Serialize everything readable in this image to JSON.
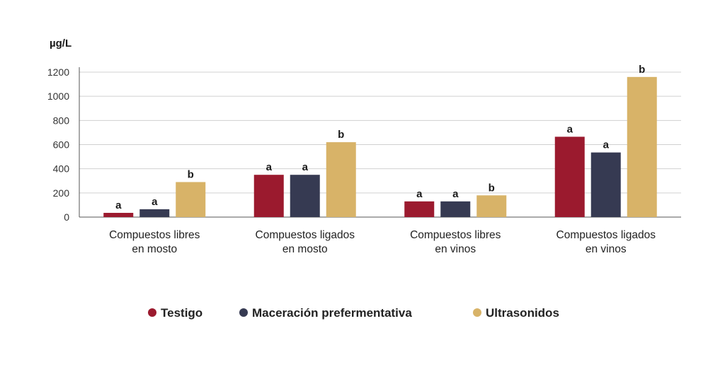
{
  "chart_data": {
    "type": "bar",
    "y_unit": "µg/L",
    "ylim": [
      0,
      1200
    ],
    "yticks": [
      "0",
      "200",
      "400",
      "600",
      "800",
      "1000",
      "1200"
    ],
    "grid": true,
    "legend_position": "bottom",
    "categories": [
      [
        "Compuestos libres",
        "en mosto"
      ],
      [
        "Compuestos ligados",
        "en mosto"
      ],
      [
        "Compuestos libres",
        "en vinos"
      ],
      [
        "Compuestos ligados",
        "en vinos"
      ]
    ],
    "series": [
      {
        "name": "Testigo",
        "color": "#9b1a2e",
        "values": [
          35,
          350,
          130,
          665
        ],
        "labels": [
          "a",
          "a",
          "a",
          "a"
        ]
      },
      {
        "name": "Maceración prefermentativa",
        "color": "#363a52",
        "values": [
          65,
          350,
          130,
          535
        ],
        "labels": [
          "a",
          "a",
          "a",
          "a"
        ]
      },
      {
        "name": "Ultrasonidos",
        "color": "#d8b368",
        "values": [
          290,
          620,
          180,
          1160
        ],
        "labels": [
          "b",
          "b",
          "b",
          "b"
        ]
      }
    ]
  }
}
